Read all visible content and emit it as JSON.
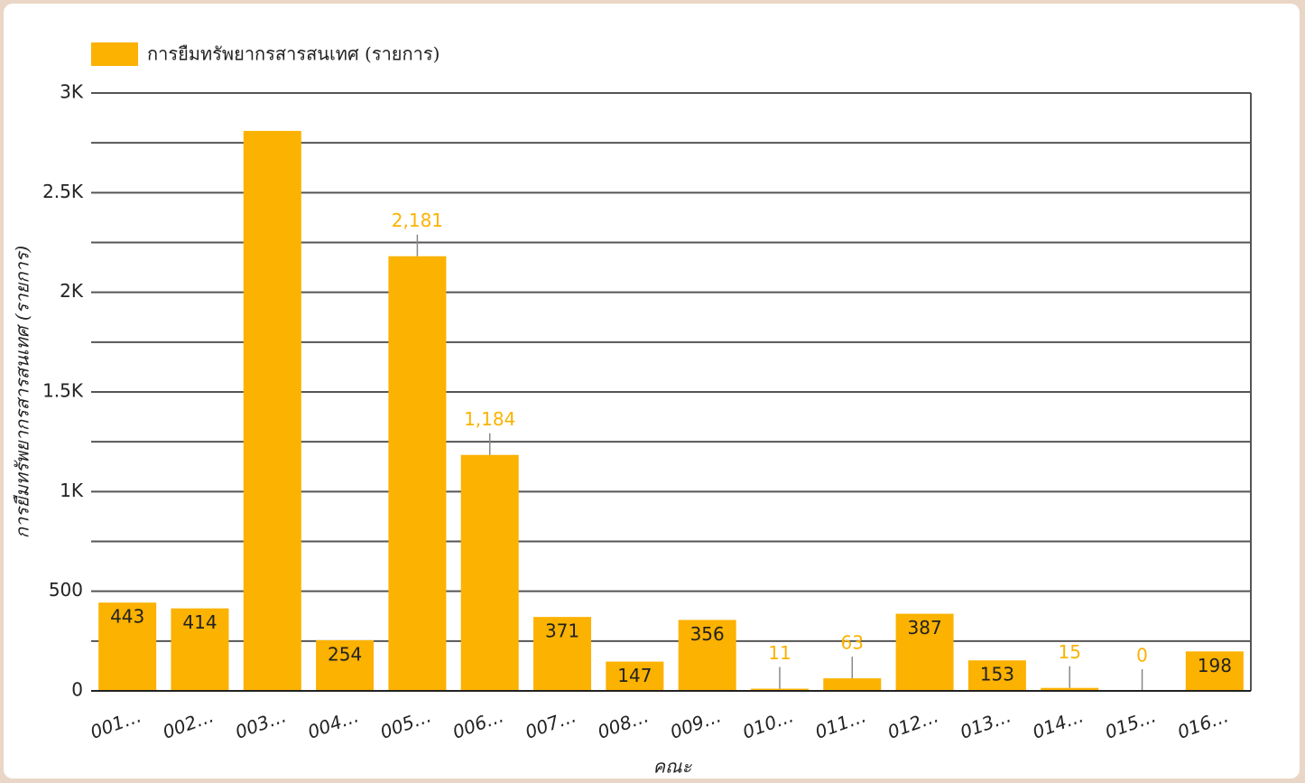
{
  "chart_data": {
    "type": "bar",
    "legend": "การยืมทรัพยากรสารสนเทศ (รายการ)",
    "ylabel": "การยืมทรัพยากรสารสนเทศ (รายการ)",
    "xlabel": "คณะ",
    "categories": [
      "001…",
      "002…",
      "003…",
      "004…",
      "005…",
      "006…",
      "007…",
      "008…",
      "009…",
      "010…",
      "011…",
      "012…",
      "013…",
      "014…",
      "015…",
      "016…"
    ],
    "values": [
      443,
      414,
      2810,
      254,
      2181,
      1184,
      371,
      147,
      356,
      11,
      63,
      387,
      153,
      15,
      0,
      198
    ],
    "value_labels": [
      "443",
      "414",
      null,
      "254",
      "2,181",
      "1,184",
      "371",
      "147",
      "356",
      "11",
      "63",
      "387",
      "153",
      "15",
      "0",
      "198"
    ],
    "color": "#fbb200",
    "ylim": [
      0,
      3000
    ],
    "yticks": [
      0,
      500,
      {
        "value": 1000,
        "label": "1K"
      },
      {
        "value": 1500,
        "label": "1.5K"
      },
      {
        "value": 2000,
        "label": "2K"
      },
      {
        "value": 2500,
        "label": "2.5K"
      },
      {
        "value": 3000,
        "label": "3K"
      }
    ],
    "minor_yticks": [
      250,
      750,
      1250,
      1750,
      2250,
      2750
    ],
    "grid": true
  }
}
